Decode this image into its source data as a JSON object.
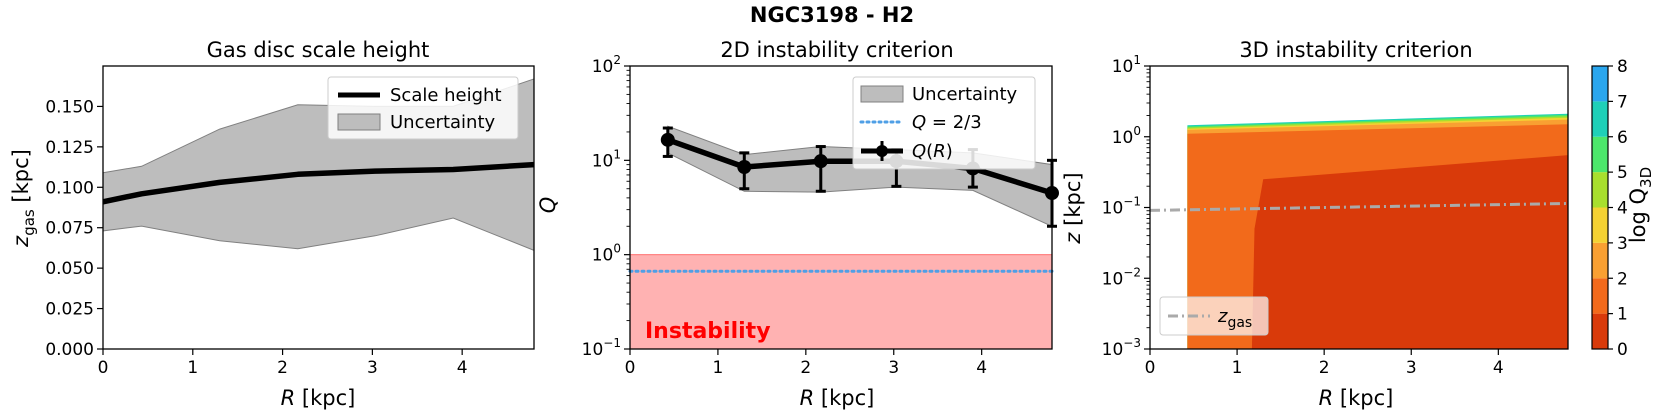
{
  "suptitle": "NGC3198 - H2",
  "chart_data": [
    {
      "type": "line",
      "title": "Gas disc scale height",
      "xlabel": "R [kpc]",
      "ylabel_main": "z",
      "ylabel_sub": "gas",
      "ylabel_unit": " [kpc]",
      "xlim": [
        0,
        4.8
      ],
      "ylim": [
        0,
        0.175
      ],
      "x_ticks": [
        0,
        1,
        2,
        3,
        4
      ],
      "x_tick_labels": [
        "0",
        "1",
        "2",
        "3",
        "4"
      ],
      "y_ticks": [
        0,
        0.025,
        0.05,
        0.075,
        0.1,
        0.125,
        0.15
      ],
      "y_tick_labels": [
        "0.000",
        "0.025",
        "0.050",
        "0.075",
        "0.100",
        "0.125",
        "0.150"
      ],
      "series": [
        {
          "name": "Scale height",
          "x": [
            0,
            0.43,
            1.3,
            2.17,
            3.03,
            3.9,
            4.8
          ],
          "values": [
            0.091,
            0.096,
            0.103,
            0.108,
            0.11,
            0.111,
            0.114
          ]
        },
        {
          "name": "Uncertainty",
          "x": [
            0,
            0.43,
            1.3,
            2.17,
            3.03,
            3.9,
            4.8
          ],
          "lower": [
            0.073,
            0.076,
            0.067,
            0.062,
            0.07,
            0.081,
            0.061
          ],
          "upper": [
            0.109,
            0.113,
            0.136,
            0.151,
            0.15,
            0.15,
            0.167
          ]
        }
      ],
      "legend": [
        "Scale height",
        "Uncertainty"
      ],
      "legend_position": "top-right"
    },
    {
      "type": "line",
      "title": "2D instability criterion",
      "xlabel": "R [kpc]",
      "ylabel": "Q",
      "yscale": "log",
      "xlim": [
        0,
        4.8
      ],
      "ylim": [
        0.1,
        100
      ],
      "x_ticks": [
        0,
        1,
        2,
        3,
        4
      ],
      "x_tick_labels": [
        "0",
        "1",
        "2",
        "3",
        "4"
      ],
      "y_ticks": [
        0.1,
        1,
        10,
        100
      ],
      "y_tick_exponents": [
        "−1",
        "0",
        "1",
        "2"
      ],
      "series": [
        {
          "name": "Q(R)",
          "x": [
            0.43,
            1.3,
            2.17,
            3.03,
            3.9,
            4.8
          ],
          "values": [
            16.5,
            8.5,
            9.8,
            9.8,
            8.2,
            4.5
          ],
          "err_low": [
            11,
            5,
            4.7,
            5.3,
            5.2,
            2.0
          ],
          "err_high": [
            22,
            12,
            14,
            13,
            13,
            10
          ]
        },
        {
          "name": "Uncertainty",
          "x": [
            0.43,
            1.3,
            2.17,
            3.03,
            3.9,
            4.8
          ],
          "lower": [
            12,
            4.7,
            4.6,
            5.2,
            4.8,
            2.0
          ],
          "upper": [
            23,
            11.5,
            14,
            13,
            12,
            9
          ]
        }
      ],
      "threshold": {
        "name": "Q = 2/3",
        "value": 0.6667,
        "color": "#4f9fe6"
      },
      "shaded_region": {
        "from": 0.1,
        "to": 1,
        "color": "#ffb2b2"
      },
      "annotation": "Instability",
      "legend": [
        "Uncertainty",
        "Q = 2/3",
        "Q(R)"
      ],
      "legend_position": "top-right"
    },
    {
      "type": "heatmap",
      "title": "3D instability criterion",
      "xlabel": "R [kpc]",
      "ylabel": "z [kpc]",
      "yscale": "log",
      "xlim": [
        0,
        4.8
      ],
      "ylim": [
        0.001,
        10
      ],
      "x_ticks": [
        0,
        1,
        2,
        3,
        4
      ],
      "x_tick_labels": [
        "0",
        "1",
        "2",
        "3",
        "4"
      ],
      "y_ticks": [
        0.001,
        0.01,
        0.1,
        1,
        10
      ],
      "y_tick_exponents": [
        "−3",
        "−2",
        "−1",
        "0",
        "1"
      ],
      "colorbar": {
        "label_main": "log Q",
        "label_sub": "3D",
        "ticks": [
          "0",
          "1",
          "2",
          "3",
          "4",
          "5",
          "6",
          "7",
          "8"
        ],
        "levels": [
          {
            "from": 0,
            "to": 1,
            "color": "#d93a0a"
          },
          {
            "from": 1,
            "to": 2,
            "color": "#f26a1b"
          },
          {
            "from": 2,
            "to": 3,
            "color": "#f9a032"
          },
          {
            "from": 3,
            "to": 4,
            "color": "#f4d233"
          },
          {
            "from": 4,
            "to": 5,
            "color": "#a8df2e"
          },
          {
            "from": 5,
            "to": 6,
            "color": "#4ce66b"
          },
          {
            "from": 6,
            "to": 7,
            "color": "#1fd0b8"
          },
          {
            "from": 7,
            "to": 8,
            "color": "#2aa6ee"
          }
        ]
      },
      "contours": [
        {
          "level": "0-1",
          "R": [
            1.17,
            1.2,
            1.3,
            4.8
          ],
          "z_top": [
            0.001,
            0.05,
            0.25,
            0.55
          ]
        },
        {
          "level": "1-2",
          "R": [
            0.43,
            4.8
          ],
          "z_top": [
            1.1,
            1.5
          ]
        },
        {
          "level": "2-3",
          "R": [
            0.43,
            4.8
          ],
          "z_top": [
            1.25,
            1.75
          ]
        },
        {
          "level": "3-4",
          "R": [
            0.43,
            4.8
          ],
          "z_top": [
            1.3,
            1.85
          ]
        },
        {
          "level": "4-5",
          "R": [
            0.43,
            4.8
          ],
          "z_top": [
            1.35,
            1.95
          ]
        },
        {
          "level": "5-6",
          "R": [
            0.43,
            4.8
          ],
          "z_top": [
            1.4,
            2.05
          ]
        },
        {
          "level": "6-7",
          "R": [
            0.43,
            4.8
          ],
          "z_top": [
            1.45,
            2.12
          ]
        }
      ],
      "series": [
        {
          "name": "z_gas",
          "x": [
            0,
            4.8
          ],
          "values": [
            0.091,
            0.114
          ],
          "style": "dash-dot",
          "color": "#aaaaaa"
        }
      ],
      "legend_main": "z",
      "legend_sub": "gas",
      "legend_position": "bottom-left"
    }
  ]
}
